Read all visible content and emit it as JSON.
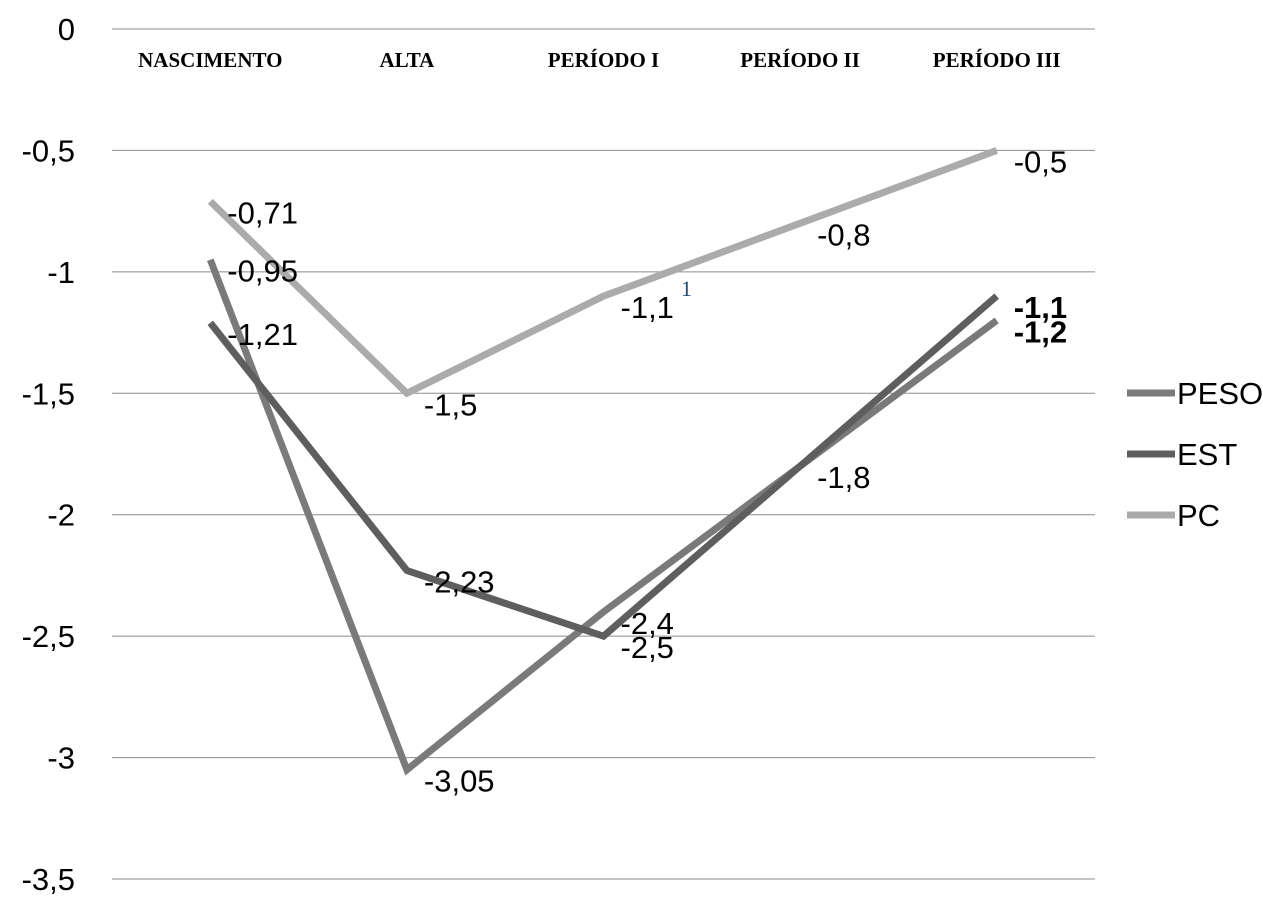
{
  "chart_data": {
    "type": "line",
    "categories": [
      "NASCIMENTO",
      "ALTA",
      "PERÍODO I",
      "PERÍODO II",
      "PERÍODO III"
    ],
    "ylim": [
      -3.5,
      0
    ],
    "yticks": [
      0,
      -0.5,
      -1,
      -1.5,
      -2,
      -2.5,
      -3,
      -3.5
    ],
    "ytick_labels": [
      "0",
      "-0,5",
      "-1",
      "-1,5",
      "-2",
      "-2,5",
      "-3",
      "-3,5"
    ],
    "grid": true,
    "legend_position": "right",
    "xaxis_position": "top",
    "series": [
      {
        "name": "PESO",
        "color": "#7a7a7a",
        "values": [
          -0.95,
          -3.05,
          -2.4,
          -1.8,
          -1.2
        ],
        "labels": [
          "-0,95",
          "-3,05",
          "-2,4",
          "",
          "-1,2"
        ],
        "bold": [
          false,
          false,
          false,
          false,
          true
        ]
      },
      {
        "name": "EST",
        "color": "#5e5e5e",
        "values": [
          -1.21,
          -2.23,
          -2.5,
          -1.8,
          -1.1
        ],
        "labels": [
          "-1,21",
          "-2,23",
          "-2,5",
          "-1,8",
          "-1,1"
        ],
        "bold": [
          false,
          false,
          false,
          false,
          true
        ]
      },
      {
        "name": "PC",
        "color": "#ababab",
        "values": [
          -0.71,
          -1.5,
          -1.1,
          -0.8,
          -0.5
        ],
        "labels": [
          "-0,71",
          "-1,5",
          "-1,1",
          "-0,8",
          "-0,5"
        ],
        "bold": [
          false,
          false,
          false,
          false,
          false
        ]
      }
    ],
    "footnote_marker": "1"
  }
}
